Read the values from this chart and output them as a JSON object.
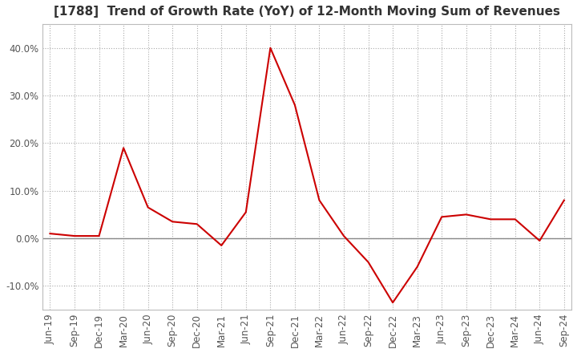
{
  "title": "[1788]  Trend of Growth Rate (YoY) of 12-Month Moving Sum of Revenues",
  "title_fontsize": 11,
  "line_color": "#cc0000",
  "background_color": "#ffffff",
  "grid_color": "#aaaaaa",
  "dates": [
    "Jun-19",
    "Sep-19",
    "Dec-19",
    "Mar-20",
    "Jun-20",
    "Sep-20",
    "Dec-20",
    "Mar-21",
    "Jun-21",
    "Sep-21",
    "Dec-21",
    "Mar-22",
    "Jun-22",
    "Sep-22",
    "Dec-22",
    "Mar-23",
    "Jun-23",
    "Sep-23",
    "Dec-23",
    "Mar-24",
    "Jun-24",
    "Sep-24"
  ],
  "values": [
    1.0,
    0.5,
    0.5,
    19.0,
    6.5,
    3.5,
    3.0,
    -1.5,
    5.5,
    40.0,
    28.0,
    8.0,
    0.5,
    -5.0,
    -13.5,
    -6.0,
    4.5,
    5.0,
    4.0,
    4.0,
    -0.5,
    8.0
  ],
  "ylim": [
    -15,
    45
  ],
  "yticks": [
    -10.0,
    0.0,
    10.0,
    20.0,
    30.0,
    40.0
  ],
  "tick_color": "#555555",
  "tick_fontsize": 8.5,
  "zero_line_color": "#888888",
  "spine_color": "#bbbbbb"
}
